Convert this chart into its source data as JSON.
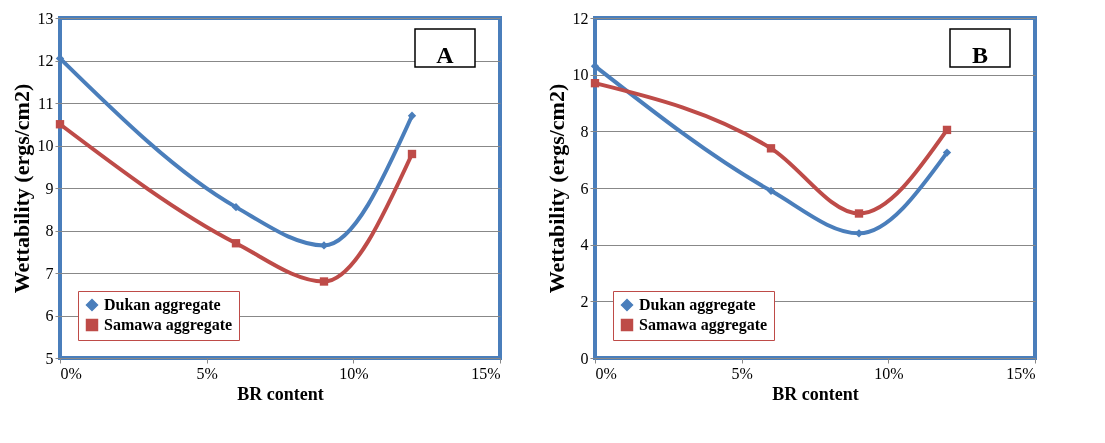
{
  "chart_data": [
    {
      "type": "line",
      "xlabel": "BR content",
      "ylabel": "Wettability (ergs/cm2)",
      "annotations": [
        "A"
      ],
      "x": [
        0,
        6,
        9,
        12
      ],
      "xlim": [
        0,
        15
      ],
      "xticks": [
        {
          "value": 0,
          "label": "0%"
        },
        {
          "value": 5,
          "label": "5%"
        },
        {
          "value": 10,
          "label": "10%"
        },
        {
          "value": 15,
          "label": "15%"
        }
      ],
      "ylim": [
        5,
        13
      ],
      "yticks": [
        5,
        6,
        7,
        8,
        9,
        10,
        11,
        12,
        13
      ],
      "grid": "y",
      "legend": "bottom left",
      "series": [
        {
          "name": "Dukan aggregate",
          "color": "#4a7ebb",
          "marker": "diamond",
          "values": [
            12.05,
            8.55,
            7.65,
            10.7
          ]
        },
        {
          "name": "Samawa aggregate",
          "color": "#be4b48",
          "marker": "square",
          "values": [
            10.5,
            7.7,
            6.8,
            9.8
          ]
        }
      ]
    },
    {
      "type": "line",
      "xlabel": "BR content",
      "ylabel": "Wettability (ergs/cm2)",
      "annotations": [
        "B"
      ],
      "x": [
        0,
        6,
        9,
        12
      ],
      "xlim": [
        0,
        15
      ],
      "xticks": [
        {
          "value": 0,
          "label": "0%"
        },
        {
          "value": 5,
          "label": "5%"
        },
        {
          "value": 10,
          "label": "10%"
        },
        {
          "value": 15,
          "label": "15%"
        }
      ],
      "ylim": [
        0,
        12
      ],
      "yticks": [
        0,
        2,
        4,
        6,
        8,
        10,
        12
      ],
      "grid": "y",
      "legend": "bottom left",
      "series": [
        {
          "name": "Dukan aggregate",
          "color": "#4a7ebb",
          "marker": "diamond",
          "values": [
            10.3,
            5.9,
            4.4,
            7.25
          ]
        },
        {
          "name": "Samawa aggregate",
          "color": "#be4b48",
          "marker": "square",
          "values": [
            9.7,
            7.4,
            5.1,
            8.05
          ]
        }
      ]
    }
  ]
}
